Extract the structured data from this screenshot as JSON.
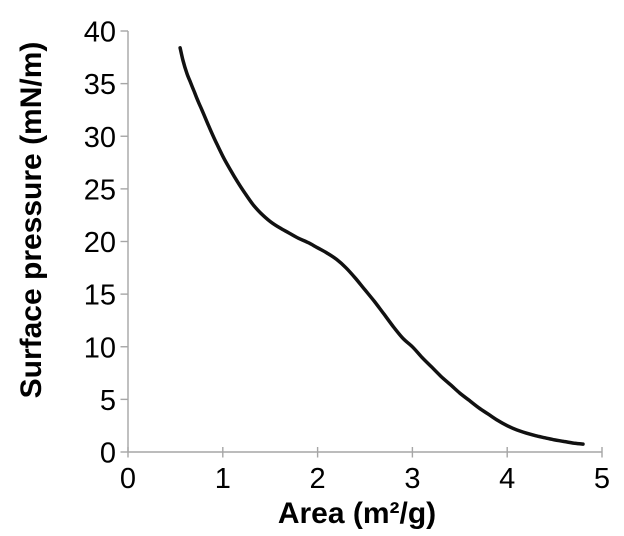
{
  "figure": {
    "background": "#ffffff"
  },
  "chart_data": {
    "type": "line",
    "title": "",
    "xlabel": "Area (m²/g)",
    "ylabel": "Surface pressure (mN/m)",
    "xlim": [
      0,
      5
    ],
    "ylim": [
      0,
      40
    ],
    "xticks": [
      "0",
      "1",
      "2",
      "3",
      "4",
      "5"
    ],
    "ytick_values": [
      0,
      5,
      10,
      15,
      20,
      25,
      30,
      35,
      40
    ],
    "xtick_values": [
      0,
      1,
      2,
      3,
      4,
      5
    ],
    "yticks": [
      "0",
      "5",
      "10",
      "15",
      "20",
      "25",
      "30",
      "35",
      "40"
    ],
    "grid": false,
    "legend": "none",
    "axis_color": "#a6a6a6",
    "text_color": "#000000",
    "series": [
      {
        "name": "surface-pressure-isotherm",
        "color": "#111111",
        "stroke_width": 3.5,
        "x": [
          0.55,
          0.58,
          0.62,
          0.66,
          0.7,
          0.74,
          0.78,
          0.85,
          0.92,
          1.0,
          1.08,
          1.16,
          1.24,
          1.32,
          1.4,
          1.5,
          1.6,
          1.7,
          1.8,
          1.9,
          2.0,
          2.1,
          2.2,
          2.3,
          2.4,
          2.5,
          2.6,
          2.7,
          2.8,
          2.9,
          3.0,
          3.1,
          3.2,
          3.3,
          3.4,
          3.5,
          3.6,
          3.7,
          3.8,
          3.9,
          4.0,
          4.1,
          4.2,
          4.3,
          4.4,
          4.5,
          4.6,
          4.7,
          4.8
        ],
        "y": [
          38.4,
          37.2,
          36.0,
          35.1,
          34.2,
          33.3,
          32.5,
          31.0,
          29.6,
          28.1,
          26.8,
          25.6,
          24.5,
          23.5,
          22.7,
          21.9,
          21.3,
          20.8,
          20.3,
          19.9,
          19.4,
          18.9,
          18.3,
          17.5,
          16.5,
          15.4,
          14.3,
          13.1,
          11.9,
          10.8,
          10.0,
          9.0,
          8.1,
          7.2,
          6.4,
          5.6,
          4.9,
          4.2,
          3.6,
          3.0,
          2.5,
          2.1,
          1.8,
          1.55,
          1.35,
          1.15,
          1.0,
          0.85,
          0.75
        ]
      }
    ]
  }
}
